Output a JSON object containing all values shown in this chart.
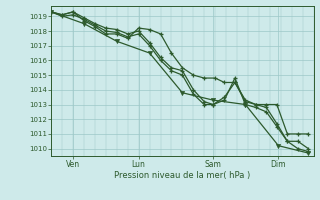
{
  "title": "",
  "xlabel": "Pression niveau de la mer( hPa )",
  "bg_color": "#ceeaea",
  "grid_color": "#9dc8c8",
  "line_color": "#2d5a2d",
  "ylim": [
    1009.5,
    1019.7
  ],
  "xlim": [
    0,
    1
  ],
  "xtick_labels": [
    "Ven",
    "Lun",
    "Sam",
    "Dim"
  ],
  "xtick_positions": [
    0.083,
    0.333,
    0.617,
    0.866
  ],
  "series1_x": [
    0.0,
    0.042,
    0.083,
    0.125,
    0.167,
    0.208,
    0.25,
    0.292,
    0.333,
    0.375,
    0.417,
    0.458,
    0.5,
    0.542,
    0.583,
    0.625,
    0.66,
    0.7,
    0.74,
    0.78,
    0.82,
    0.86,
    0.9,
    0.94,
    0.98
  ],
  "series1_y": [
    1019.3,
    1019.1,
    1019.3,
    1018.7,
    1018.3,
    1017.8,
    1017.8,
    1017.5,
    1018.2,
    1018.1,
    1017.8,
    1016.5,
    1015.5,
    1015.0,
    1014.8,
    1014.8,
    1014.5,
    1014.5,
    1013.3,
    1013.0,
    1013.0,
    1013.0,
    1011.0,
    1011.0,
    1011.0
  ],
  "series2_x": [
    0.0,
    0.042,
    0.083,
    0.125,
    0.167,
    0.208,
    0.25,
    0.292,
    0.333,
    0.375,
    0.417,
    0.458,
    0.5,
    0.542,
    0.583,
    0.617,
    0.66,
    0.7,
    0.74,
    0.78,
    0.82,
    0.86,
    0.9,
    0.94,
    0.98
  ],
  "series2_y": [
    1019.3,
    1019.1,
    1019.3,
    1018.9,
    1018.5,
    1018.2,
    1018.1,
    1017.8,
    1018.0,
    1017.2,
    1016.2,
    1015.5,
    1015.3,
    1014.0,
    1013.2,
    1013.0,
    1013.5,
    1014.5,
    1013.2,
    1013.0,
    1012.8,
    1011.7,
    1010.5,
    1010.0,
    1009.8
  ],
  "series3_x": [
    0.0,
    0.042,
    0.083,
    0.125,
    0.167,
    0.208,
    0.25,
    0.292,
    0.333,
    0.375,
    0.417,
    0.458,
    0.5,
    0.542,
    0.583,
    0.617,
    0.66,
    0.7,
    0.74,
    0.78,
    0.82,
    0.86,
    0.9,
    0.94,
    0.98
  ],
  "series3_y": [
    1019.3,
    1019.0,
    1019.1,
    1018.8,
    1018.4,
    1018.0,
    1017.9,
    1017.6,
    1017.8,
    1017.0,
    1016.0,
    1015.3,
    1015.0,
    1013.7,
    1013.0,
    1013.0,
    1013.3,
    1014.8,
    1013.0,
    1012.8,
    1012.5,
    1011.5,
    1010.5,
    1010.5,
    1010.0
  ],
  "series4_x": [
    0.0,
    0.125,
    0.25,
    0.375,
    0.5,
    0.617,
    0.74,
    0.866,
    0.98
  ],
  "series4_y": [
    1019.3,
    1018.5,
    1017.3,
    1016.5,
    1013.8,
    1013.3,
    1013.0,
    1010.2,
    1009.7
  ],
  "ytick_vals": [
    1010,
    1011,
    1012,
    1013,
    1014,
    1015,
    1016,
    1017,
    1018,
    1019
  ]
}
